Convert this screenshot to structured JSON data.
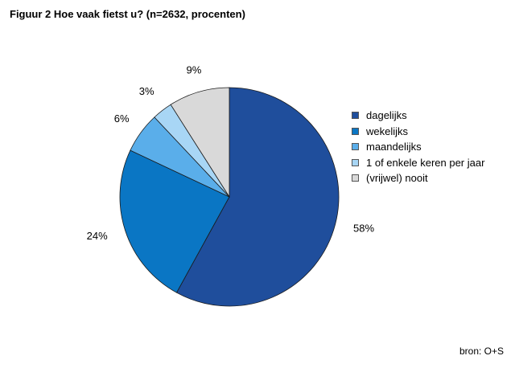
{
  "chart_data": {
    "type": "pie",
    "title": "Figuur 2 Hoe vaak fietst u? (n=2632, procenten)",
    "categories": [
      "dagelijks",
      "wekelijks",
      "maandelijks",
      "1 of enkele keren per jaar",
      "(vrijwel) nooit"
    ],
    "values": [
      58,
      24,
      6,
      3,
      9
    ],
    "value_labels": [
      "58%",
      "24%",
      "6%",
      "3%",
      "9%"
    ],
    "colors": [
      "#1f4e9c",
      "#0a76c4",
      "#5aaeea",
      "#a8d6f5",
      "#d9d9d9"
    ],
    "legend_position": "right",
    "start_angle": "12 o'clock",
    "direction": "clockwise"
  },
  "source": "bron: O+S"
}
